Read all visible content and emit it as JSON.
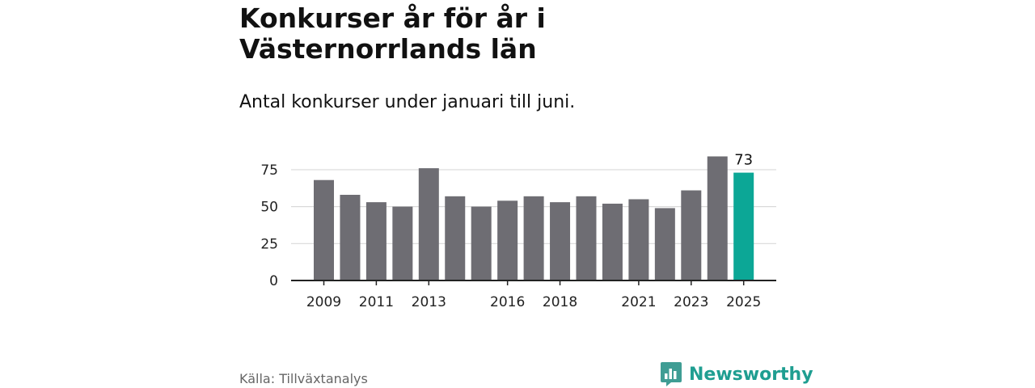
{
  "header": {
    "title": "Konkurser år för år i Västernorrlands län",
    "subtitle": "Antal konkurser under januari till juni."
  },
  "footer": {
    "source": "Källa: Tillväxtanalys",
    "brand": "Newsworthy",
    "brand_icon": "bar-chart-logo-icon"
  },
  "colors": {
    "bar": "#6e6d73",
    "highlight": "#0ca796",
    "grid": "#d9d9d9",
    "axis": "#222222"
  },
  "chart_data": {
    "type": "bar",
    "title": "Konkurser år för år i Västernorrlands län",
    "subtitle": "Antal konkurser under januari till juni.",
    "xlabel": "",
    "ylabel": "",
    "categories": [
      "2009",
      "2010",
      "2011",
      "2012",
      "2013",
      "2014",
      "2015",
      "2016",
      "2017",
      "2018",
      "2019",
      "2020",
      "2021",
      "2022",
      "2023",
      "2024",
      "2025"
    ],
    "values": [
      68,
      58,
      53,
      50,
      76,
      57,
      50,
      54,
      57,
      53,
      57,
      52,
      55,
      49,
      61,
      84,
      73
    ],
    "highlight_category": "2025",
    "data_labels": [
      {
        "category": "2025",
        "text": "73"
      }
    ],
    "x_tick_labels": [
      "2009",
      "2011",
      "2013",
      "2016",
      "2018",
      "2021",
      "2023",
      "2025"
    ],
    "y_ticks": [
      0,
      25,
      50,
      75
    ],
    "ylim": [
      0,
      87
    ],
    "grid": true,
    "legend": "none"
  }
}
